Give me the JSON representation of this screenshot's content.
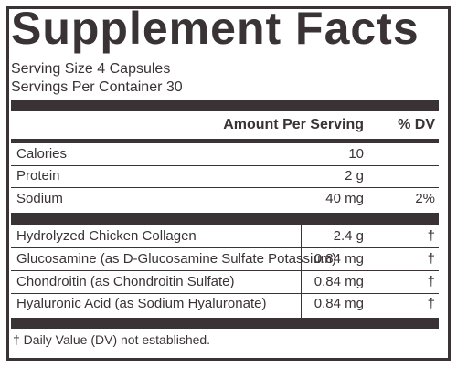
{
  "title": "Supplement Facts",
  "serving_size": "Serving Size 4 Capsules",
  "servings_per_container": "Servings Per Container 30",
  "headers": {
    "amount": "Amount Per Serving",
    "dv": "% DV"
  },
  "nutrients": [
    {
      "name": "Calories",
      "amount": "10",
      "dv": ""
    },
    {
      "name": "Protein",
      "amount": "2 g",
      "dv": ""
    },
    {
      "name": "Sodium",
      "amount": "40 mg",
      "dv": "2%"
    }
  ],
  "ingredients": [
    {
      "name": "Hydrolyzed Chicken Collagen",
      "amount": "2.4 g",
      "dv": "†"
    },
    {
      "name": "Glucosamine (as D-Glucosamine Sulfate Potassium)",
      "amount": "0.84 mg",
      "dv": "†"
    },
    {
      "name": "Chondroitin (as Chondroitin Sulfate)",
      "amount": "0.84 mg",
      "dv": "†"
    },
    {
      "name": "Hyaluronic Acid (as Sodium Hyaluronate)",
      "amount": "0.84 mg",
      "dv": "†"
    }
  ],
  "footnote": "† Daily Value (DV) not established.",
  "colors": {
    "ink": "#3a3335",
    "background": "#ffffff"
  }
}
